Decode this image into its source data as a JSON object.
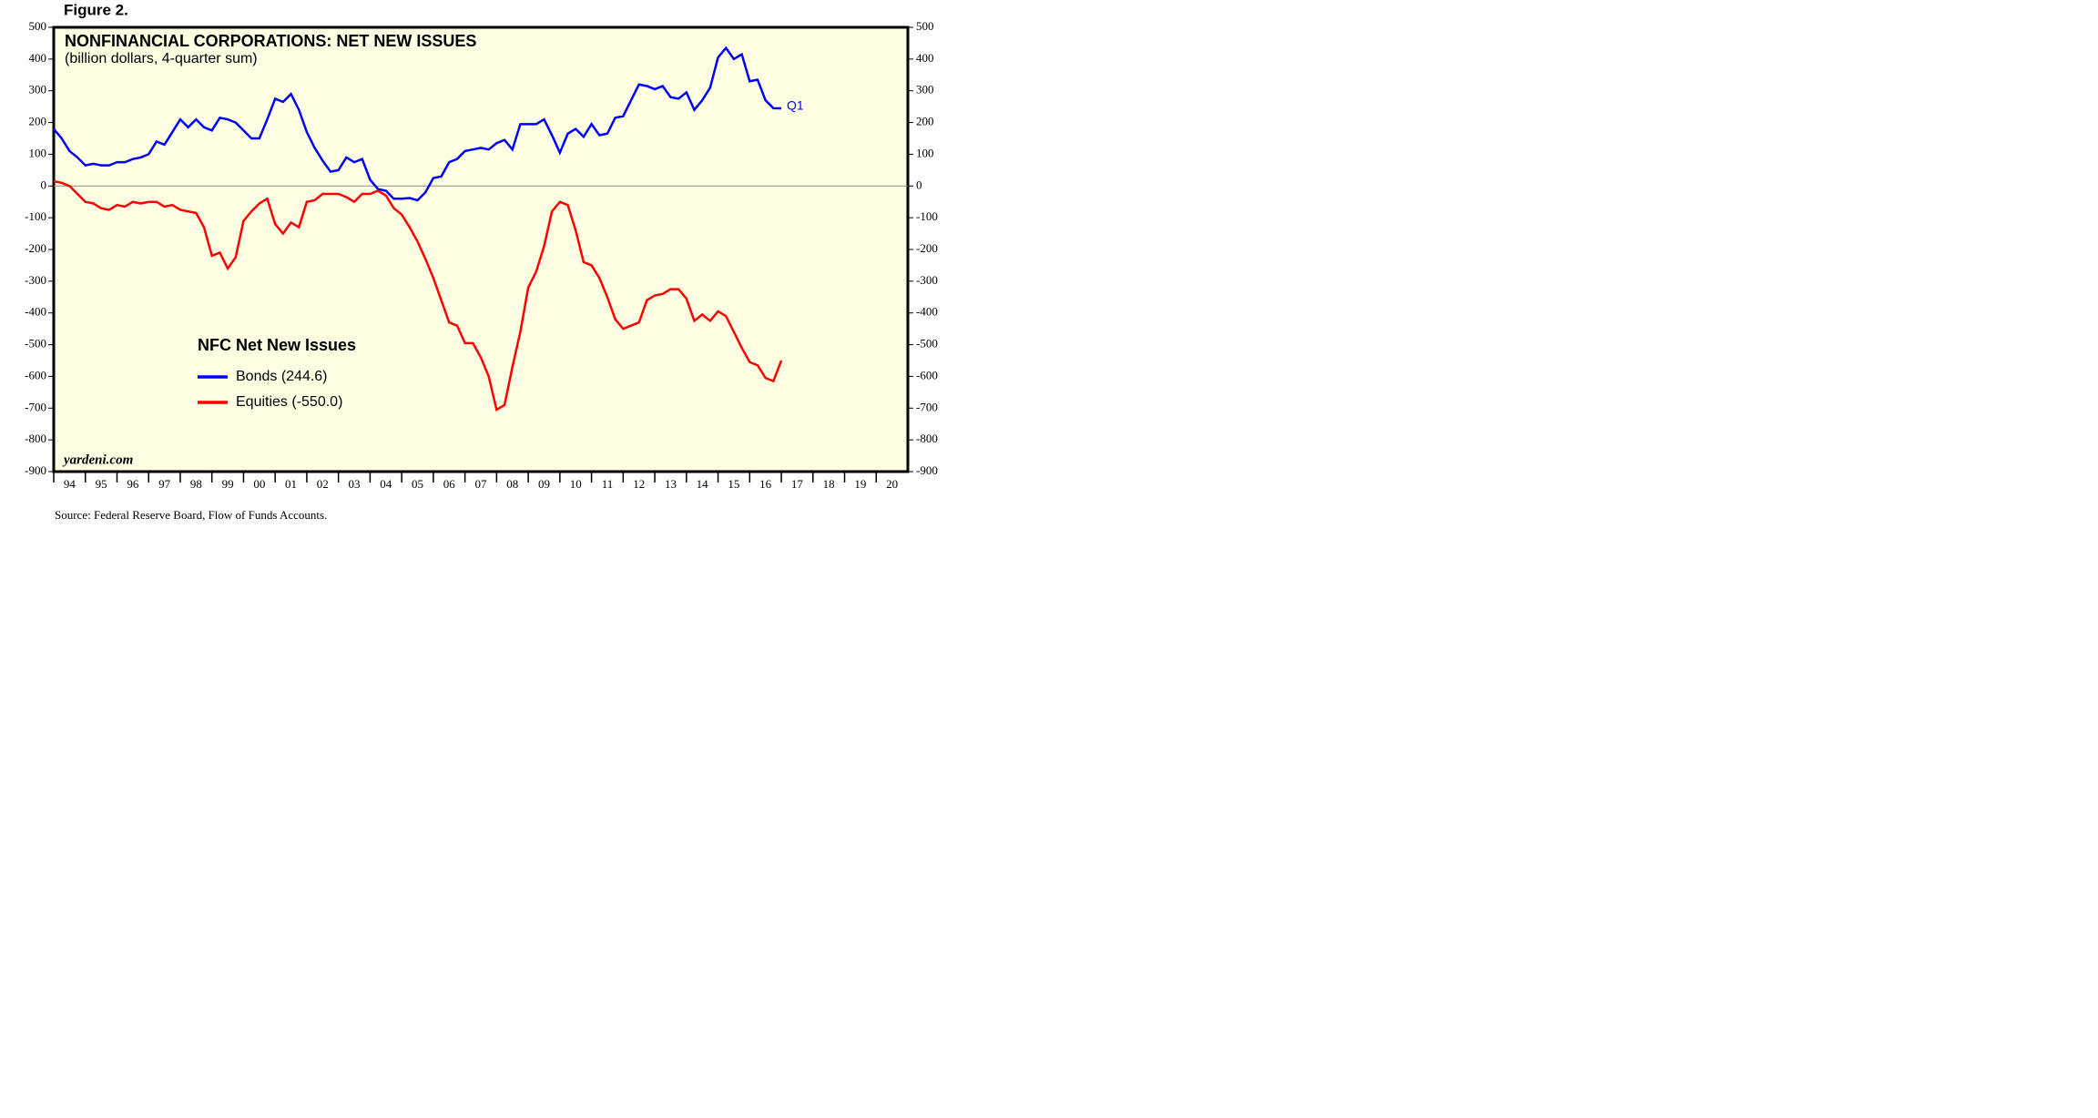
{
  "figure_label": "Figure 2.",
  "source": "Source: Federal Reserve Board, Flow of Funds Accounts.",
  "chart_data": {
    "type": "line",
    "title": "NONFINANCIAL CORPORATIONS: NET NEW ISSUES",
    "subtitle": "(billion dollars, 4-quarter sum)",
    "legend_title": "NFC Net New Issues",
    "watermark": "yardeni.com",
    "annotation": "Q1",
    "x": [
      1994,
      1994.25,
      1994.5,
      1994.75,
      1995,
      1995.25,
      1995.5,
      1995.75,
      1996,
      1996.25,
      1996.5,
      1996.75,
      1997,
      1997.25,
      1997.5,
      1997.75,
      1998,
      1998.25,
      1998.5,
      1998.75,
      1999,
      1999.25,
      1999.5,
      1999.75,
      2000,
      2000.25,
      2000.5,
      2000.75,
      2001,
      2001.25,
      2001.5,
      2001.75,
      2002,
      2002.25,
      2002.5,
      2002.75,
      2003,
      2003.25,
      2003.5,
      2003.75,
      2004,
      2004.25,
      2004.5,
      2004.75,
      2005,
      2005.25,
      2005.5,
      2005.75,
      2006,
      2006.25,
      2006.5,
      2006.75,
      2007,
      2007.25,
      2007.5,
      2007.75,
      2008,
      2008.25,
      2008.5,
      2008.75,
      2009,
      2009.25,
      2009.5,
      2009.75,
      2010,
      2010.25,
      2010.5,
      2010.75,
      2011,
      2011.25,
      2011.5,
      2011.75,
      2012,
      2012.25,
      2012.5,
      2012.75,
      2013,
      2013.25,
      2013.5,
      2013.75,
      2014,
      2014.25,
      2014.5,
      2014.75,
      2015,
      2015.25,
      2015.5,
      2015.75,
      2016,
      2016.25,
      2016.5,
      2016.75,
      2017
    ],
    "series": [
      {
        "name": "Bonds (244.6)",
        "color": "#0000ff",
        "values": [
          180,
          150,
          110,
          90,
          65,
          70,
          65,
          65,
          75,
          75,
          85,
          90,
          100,
          140,
          130,
          170,
          210,
          185,
          210,
          185,
          175,
          215,
          210,
          200,
          175,
          150,
          150,
          210,
          275,
          265,
          290,
          240,
          170,
          120,
          80,
          45,
          50,
          90,
          75,
          85,
          20,
          -10,
          -15,
          -40,
          -40,
          -38,
          -45,
          -20,
          25,
          30,
          75,
          85,
          110,
          115,
          120,
          115,
          135,
          145,
          115,
          195,
          195,
          195,
          210,
          160,
          105,
          165,
          180,
          155,
          195,
          160,
          165,
          215,
          220,
          270,
          320,
          315,
          305,
          315,
          280,
          275,
          295,
          240,
          270,
          310,
          405,
          435,
          400,
          415,
          330,
          335,
          270,
          245,
          244.6
        ]
      },
      {
        "name": "Equities (-550.0)",
        "color": "#ff0000",
        "values": [
          15,
          10,
          0,
          -25,
          -50,
          -55,
          -70,
          -75,
          -60,
          -65,
          -50,
          -55,
          -50,
          -50,
          -65,
          -60,
          -75,
          -80,
          -85,
          -130,
          -220,
          -210,
          -260,
          -225,
          -110,
          -80,
          -55,
          -40,
          -120,
          -150,
          -115,
          -130,
          -50,
          -45,
          -25,
          -25,
          -25,
          -35,
          -50,
          -25,
          -25,
          -15,
          -30,
          -70,
          -90,
          -130,
          -175,
          -230,
          -290,
          -360,
          -430,
          -440,
          -495,
          -495,
          -540,
          -600,
          -705,
          -690,
          -570,
          -460,
          -320,
          -270,
          -190,
          -80,
          -50,
          -60,
          -140,
          -240,
          -250,
          -290,
          -350,
          -420,
          -450,
          -440,
          -430,
          -360,
          -345,
          -340,
          -325,
          -325,
          -355,
          -425,
          -405,
          -425,
          -395,
          -410,
          -460,
          -510,
          -555,
          -565,
          -605,
          -615,
          -550
        ]
      }
    ],
    "xlim": [
      1994,
      2021
    ],
    "xticks": [
      {
        "value": 1994,
        "label": "94"
      },
      {
        "value": 1995,
        "label": "95"
      },
      {
        "value": 1996,
        "label": "96"
      },
      {
        "value": 1997,
        "label": "97"
      },
      {
        "value": 1998,
        "label": "98"
      },
      {
        "value": 1999,
        "label": "99"
      },
      {
        "value": 2000,
        "label": "00"
      },
      {
        "value": 2001,
        "label": "01"
      },
      {
        "value": 2002,
        "label": "02"
      },
      {
        "value": 2003,
        "label": "03"
      },
      {
        "value": 2004,
        "label": "04"
      },
      {
        "value": 2005,
        "label": "05"
      },
      {
        "value": 2006,
        "label": "06"
      },
      {
        "value": 2007,
        "label": "07"
      },
      {
        "value": 2008,
        "label": "08"
      },
      {
        "value": 2009,
        "label": "09"
      },
      {
        "value": 2010,
        "label": "10"
      },
      {
        "value": 2011,
        "label": "11"
      },
      {
        "value": 2012,
        "label": "12"
      },
      {
        "value": 2013,
        "label": "13"
      },
      {
        "value": 2014,
        "label": "14"
      },
      {
        "value": 2015,
        "label": "15"
      },
      {
        "value": 2016,
        "label": "16"
      },
      {
        "value": 2017,
        "label": "17"
      },
      {
        "value": 2018,
        "label": "18"
      },
      {
        "value": 2019,
        "label": "19"
      },
      {
        "value": 2020,
        "label": "20"
      }
    ],
    "ylim": [
      -900,
      500
    ],
    "yticks": [
      -900,
      -800,
      -700,
      -600,
      -500,
      -400,
      -300,
      -200,
      -100,
      0,
      100,
      200,
      300,
      400,
      500
    ],
    "zero_line": true
  }
}
